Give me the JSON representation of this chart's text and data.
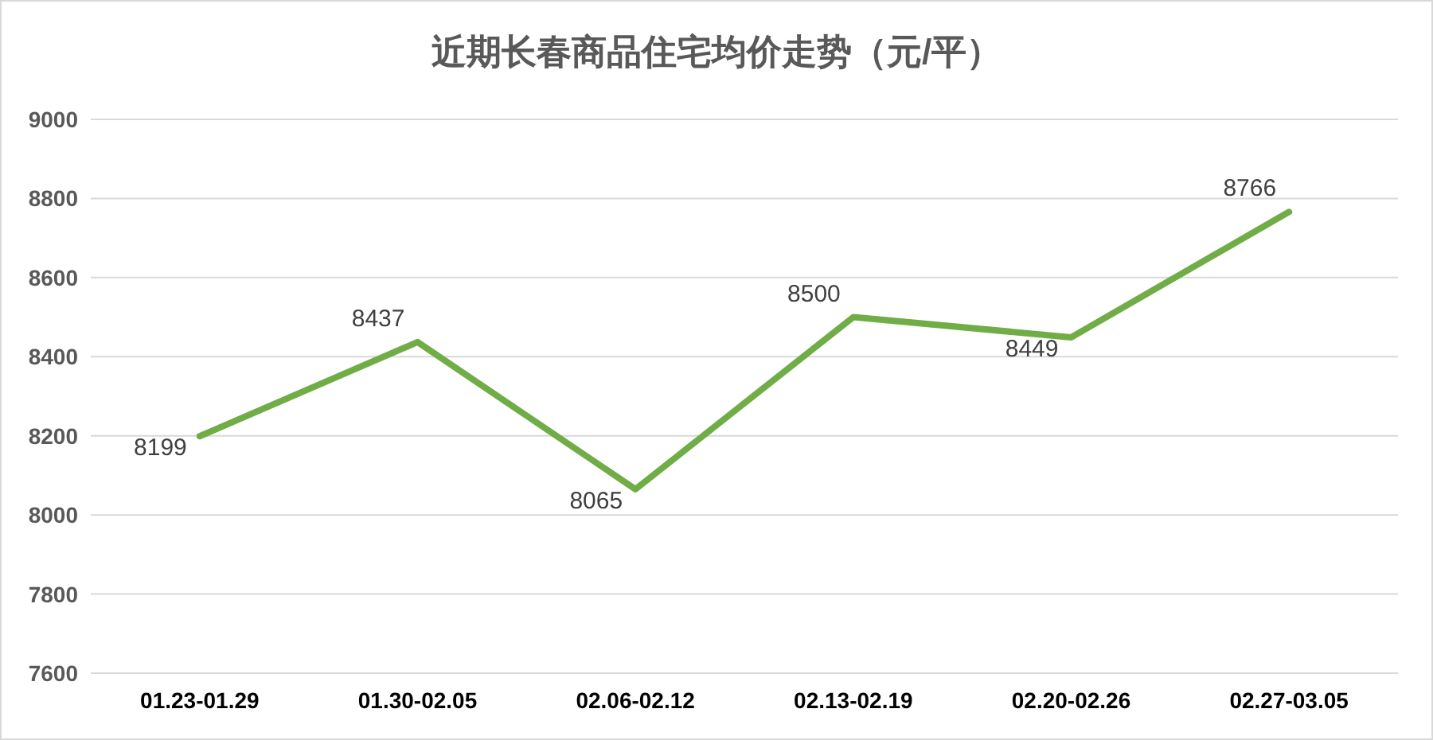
{
  "chart_data": {
    "type": "line",
    "title": "近期长春商品住宅均价走势（元/平）",
    "categories": [
      "01.23-01.29",
      "01.30-02.05",
      "02.06-02.12",
      "02.13-02.19",
      "02.20-02.26",
      "02.27-03.05"
    ],
    "values": [
      8199,
      8437,
      8065,
      8500,
      8449,
      8766
    ],
    "color": "#70ad47",
    "ylim": [
      7600,
      9000
    ],
    "yticks": [
      7600,
      7800,
      8000,
      8200,
      8400,
      8600,
      8800,
      9000
    ],
    "grid": "y",
    "data_labels": true
  }
}
